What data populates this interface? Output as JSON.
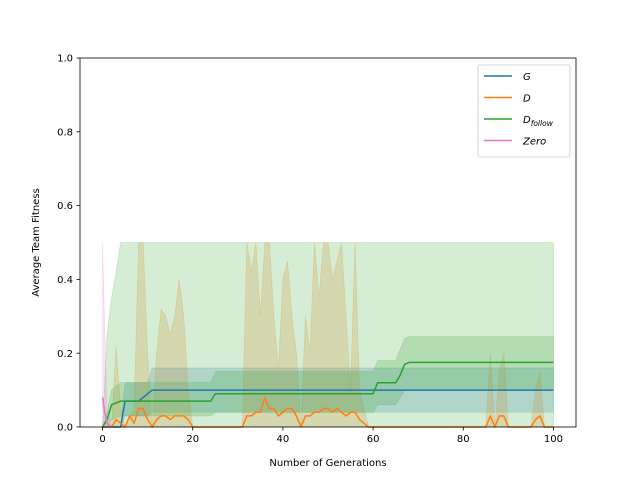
{
  "chart_data": {
    "type": "line",
    "xlabel": "Number of Generations",
    "ylabel": "Average Team Fitness",
    "xlim": [
      -5,
      105
    ],
    "ylim": [
      0,
      1.0
    ],
    "xticks": [
      0,
      20,
      40,
      60,
      80,
      100
    ],
    "yticks": [
      0.0,
      0.2,
      0.4,
      0.6,
      0.8,
      1.0
    ],
    "xtick_labels": [
      "0",
      "20",
      "40",
      "60",
      "80",
      "100"
    ],
    "ytick_labels": [
      "0.0",
      "0.2",
      "0.4",
      "0.6",
      "0.8",
      "1.0"
    ],
    "legend_position": "top-right",
    "grid": false,
    "series": [
      {
        "name": "G",
        "legend_main": "G",
        "legend_sub": "",
        "color": "#1f77b4",
        "x": [
          0,
          4,
          5,
          8,
          9,
          11,
          60,
          100
        ],
        "y": [
          0,
          0,
          0.07,
          0.07,
          0.08,
          0.1,
          0.1,
          0.1
        ],
        "band_x": [
          0,
          4,
          5,
          10,
          11,
          100
        ],
        "band_upper": [
          0,
          0,
          0.12,
          0.12,
          0.16,
          0.16
        ],
        "band_lower": [
          0,
          0,
          0.03,
          0.03,
          0.04,
          0.04
        ]
      },
      {
        "name": "D",
        "legend_main": "D",
        "legend_sub": "",
        "color": "#ff7f0e",
        "x": [
          0,
          2,
          3,
          4,
          5,
          6,
          7,
          8,
          9,
          10,
          11,
          12,
          13,
          14,
          15,
          16,
          17,
          18,
          19,
          20,
          30,
          31,
          32,
          33,
          34,
          35,
          36,
          37,
          38,
          39,
          40,
          41,
          42,
          43,
          44,
          45,
          46,
          47,
          48,
          49,
          50,
          51,
          52,
          53,
          54,
          55,
          56,
          57,
          58,
          59,
          60,
          61,
          62,
          85,
          86,
          87,
          88,
          89,
          90,
          95,
          96,
          97,
          98,
          100
        ],
        "y": [
          0,
          0,
          0.02,
          0.01,
          0,
          0.03,
          0.01,
          0.05,
          0.05,
          0.02,
          0,
          0.02,
          0.03,
          0.03,
          0.02,
          0.03,
          0.03,
          0.03,
          0.02,
          0,
          0,
          0,
          0.03,
          0.03,
          0.04,
          0.04,
          0.08,
          0.05,
          0.05,
          0.03,
          0.04,
          0.05,
          0.05,
          0.03,
          0,
          0.03,
          0.03,
          0.04,
          0.04,
          0.05,
          0.05,
          0.04,
          0.05,
          0.04,
          0.03,
          0.04,
          0.04,
          0.02,
          0.01,
          0,
          0,
          0,
          0,
          0,
          0.03,
          0,
          0.03,
          0.03,
          0,
          0,
          0.02,
          0.03,
          0,
          0
        ],
        "band_x": [
          0,
          2,
          3,
          4,
          5,
          7,
          8,
          9,
          10,
          11,
          12,
          13,
          14,
          15,
          16,
          17,
          18,
          19,
          20,
          31,
          32,
          33,
          34,
          35,
          36,
          37,
          38,
          39,
          40,
          41,
          42,
          43,
          44,
          45,
          46,
          47,
          48,
          49,
          50,
          51,
          52,
          53,
          54,
          55,
          56,
          57,
          58,
          59,
          60,
          85,
          86,
          87,
          88,
          89,
          90,
          95,
          96,
          97,
          98,
          100
        ],
        "band_upper": [
          0,
          0,
          0.22,
          0.05,
          0,
          0.05,
          0.5,
          0.5,
          0.2,
          0,
          0.2,
          0.32,
          0.3,
          0.25,
          0.3,
          0.4,
          0.3,
          0.1,
          0,
          0,
          0.5,
          0.42,
          0.5,
          0.3,
          0.5,
          0.5,
          0.3,
          0.15,
          0.4,
          0.45,
          0.3,
          0.2,
          0,
          0.3,
          0.2,
          0.5,
          0.35,
          0.5,
          0.5,
          0.4,
          0.45,
          0.5,
          0.3,
          0.1,
          0.5,
          0.1,
          0.05,
          0,
          0,
          0,
          0.2,
          0,
          0.15,
          0.2,
          0,
          0,
          0.1,
          0.15,
          0,
          0
        ],
        "band_lower": [
          0,
          0,
          0,
          0,
          0,
          0,
          0,
          0,
          0,
          0,
          0,
          0,
          0,
          0,
          0,
          0,
          0,
          0,
          0,
          0,
          0,
          0,
          0,
          0,
          0,
          0,
          0,
          0,
          0,
          0,
          0,
          0,
          0,
          0,
          0,
          0,
          0,
          0,
          0,
          0,
          0,
          0,
          0,
          0,
          0,
          0,
          0,
          0,
          0,
          0,
          0,
          0,
          0,
          0,
          0,
          0,
          0,
          0,
          0,
          0
        ]
      },
      {
        "name": "D_follow",
        "legend_main": "D",
        "legend_sub": "follow",
        "color": "#2ca02c",
        "x": [
          0,
          1,
          2,
          4,
          5,
          24,
          25,
          60,
          61,
          65,
          66,
          67,
          68,
          100
        ],
        "y": [
          0,
          0.02,
          0.06,
          0.07,
          0.07,
          0.07,
          0.09,
          0.09,
          0.12,
          0.12,
          0.14,
          0.17,
          0.175,
          0.175
        ],
        "band_x": [
          0,
          1,
          2,
          3,
          4,
          5,
          100
        ],
        "band_upper": [
          0,
          0.25,
          0.35,
          0.42,
          0.5,
          0.5,
          0.5
        ],
        "band_lower": [
          0,
          0,
          0,
          0,
          0,
          0,
          0
        ],
        "band2_x": [
          0,
          1,
          2,
          4,
          5,
          24,
          25,
          60,
          61,
          65,
          66,
          67,
          68,
          100
        ],
        "band2_upper": [
          0,
          0.04,
          0.1,
          0.12,
          0.12,
          0.12,
          0.15,
          0.15,
          0.18,
          0.18,
          0.21,
          0.24,
          0.245,
          0.245
        ],
        "band2_lower": [
          0,
          0,
          0.02,
          0.03,
          0.03,
          0.03,
          0.04,
          0.04,
          0.06,
          0.06,
          0.08,
          0.1,
          0.1,
          0.1
        ]
      },
      {
        "name": "Zero",
        "legend_main": "Zero",
        "legend_sub": "",
        "color": "#e377c2",
        "x": [
          0,
          0.5,
          1,
          2
        ],
        "y": [
          0.08,
          0.04,
          0.01,
          0
        ],
        "band_x": [
          0,
          0.4,
          1,
          2
        ],
        "band_upper": [
          0.5,
          0.3,
          0.05,
          0
        ],
        "band_lower": [
          0,
          0,
          0,
          0
        ]
      }
    ]
  }
}
